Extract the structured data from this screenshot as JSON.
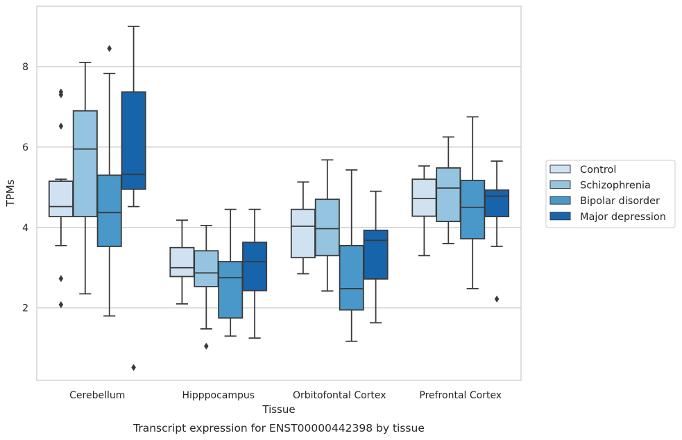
{
  "chart_data": {
    "type": "box",
    "title": "",
    "caption": "Transcript expression for ENST00000442398 by tissue",
    "xlabel": "Tissue",
    "ylabel": "TPMs",
    "ylim": [
      0.2,
      9.5
    ],
    "yticks": [
      2,
      4,
      6,
      8
    ],
    "grid": "horizontal",
    "legend_position": "right",
    "categories": [
      "Cerebellum",
      "Hipppocampus",
      "Orbitofontal Cortex",
      "Prefrontal Cortex"
    ],
    "series": [
      {
        "name": "Control",
        "color": "#d0e1f2",
        "boxes": [
          {
            "whislo": 3.55,
            "q1": 4.27,
            "med": 4.52,
            "q3": 5.15,
            "whishi": 5.2,
            "fliers": [
              2.73,
              2.08,
              6.52,
              7.3,
              7.37
            ]
          },
          {
            "whislo": 2.1,
            "q1": 2.78,
            "med": 3.0,
            "q3": 3.5,
            "whishi": 4.18,
            "fliers": []
          },
          {
            "whislo": 2.85,
            "q1": 3.25,
            "med": 4.03,
            "q3": 4.45,
            "whishi": 5.13,
            "fliers": []
          },
          {
            "whislo": 3.3,
            "q1": 4.28,
            "med": 4.72,
            "q3": 5.2,
            "whishi": 5.53,
            "fliers": []
          }
        ]
      },
      {
        "name": "Schizophrenia",
        "color": "#94c4df",
        "boxes": [
          {
            "whislo": 2.35,
            "q1": 4.27,
            "med": 5.95,
            "q3": 6.9,
            "whishi": 8.1,
            "fliers": []
          },
          {
            "whislo": 1.48,
            "q1": 2.53,
            "med": 2.87,
            "q3": 3.42,
            "whishi": 4.05,
            "fliers": [
              1.05
            ]
          },
          {
            "whislo": 2.42,
            "q1": 3.3,
            "med": 3.97,
            "q3": 4.7,
            "whishi": 5.68,
            "fliers": []
          },
          {
            "whislo": 3.6,
            "q1": 4.15,
            "med": 4.98,
            "q3": 5.48,
            "whishi": 6.25,
            "fliers": []
          }
        ]
      },
      {
        "name": "Bipolar disorder",
        "color": "#4a98c9",
        "boxes": [
          {
            "whislo": 1.8,
            "q1": 3.53,
            "med": 4.37,
            "q3": 5.3,
            "whishi": 7.83,
            "fliers": [
              8.45
            ]
          },
          {
            "whislo": 1.3,
            "q1": 1.75,
            "med": 2.75,
            "q3": 3.15,
            "whishi": 4.45,
            "fliers": []
          },
          {
            "whislo": 1.17,
            "q1": 1.95,
            "med": 2.48,
            "q3": 3.55,
            "whishi": 5.43,
            "fliers": []
          },
          {
            "whislo": 2.48,
            "q1": 3.72,
            "med": 4.5,
            "q3": 5.17,
            "whishi": 6.75,
            "fliers": []
          }
        ]
      },
      {
        "name": "Major depression",
        "color": "#1764ab",
        "boxes": [
          {
            "whislo": 4.52,
            "q1": 4.95,
            "med": 5.32,
            "q3": 7.37,
            "whishi": 9.0,
            "fliers": [
              0.52
            ]
          },
          {
            "whislo": 1.25,
            "q1": 2.43,
            "med": 3.15,
            "q3": 3.63,
            "whishi": 4.45,
            "fliers": []
          },
          {
            "whislo": 1.63,
            "q1": 2.72,
            "med": 3.68,
            "q3": 3.93,
            "whishi": 4.9,
            "fliers": []
          },
          {
            "whislo": 3.53,
            "q1": 4.27,
            "med": 4.78,
            "q3": 4.93,
            "whishi": 5.65,
            "fliers": [
              2.22
            ]
          }
        ]
      }
    ]
  }
}
